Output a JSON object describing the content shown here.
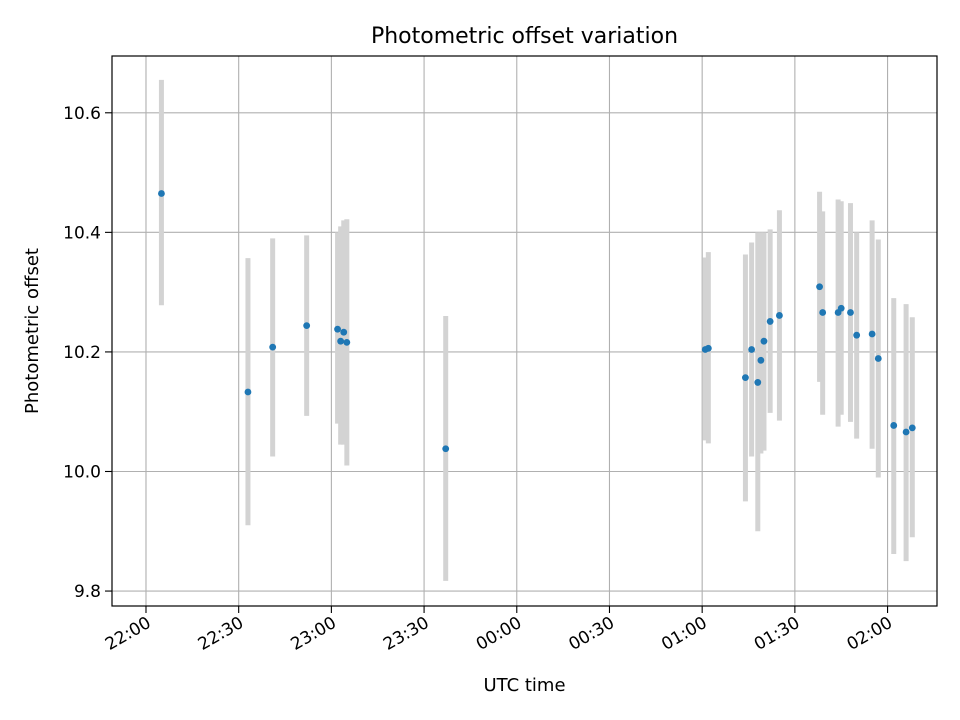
{
  "chart_data": {
    "type": "scatter",
    "title": "Photometric offset variation",
    "xlabel": "UTC time",
    "ylabel": "Photometric offset",
    "x_axis": "time",
    "x_range_minutes_since_2200": [
      -11,
      256
    ],
    "ylim": [
      9.775,
      10.695
    ],
    "grid": true,
    "xticks": [
      {
        "m": 0,
        "label": "22:00"
      },
      {
        "m": 30,
        "label": "22:30"
      },
      {
        "m": 60,
        "label": "23:00"
      },
      {
        "m": 90,
        "label": "23:30"
      },
      {
        "m": 120,
        "label": "00:00"
      },
      {
        "m": 150,
        "label": "00:30"
      },
      {
        "m": 180,
        "label": "01:00"
      },
      {
        "m": 210,
        "label": "01:30"
      },
      {
        "m": 240,
        "label": "02:00"
      }
    ],
    "yticks": [
      {
        "v": 9.8,
        "label": "9.8"
      },
      {
        "v": 10.0,
        "label": "10.0"
      },
      {
        "v": 10.2,
        "label": "10.2"
      },
      {
        "v": 10.4,
        "label": "10.4"
      },
      {
        "v": 10.6,
        "label": "10.6"
      }
    ],
    "colors": {
      "point": "#1f77b4",
      "errorbar": "#d3d3d3",
      "grid": "#b0b0b0"
    },
    "points": [
      {
        "t": "22:05",
        "y": 10.465,
        "lo": 10.278,
        "hi": 10.655
      },
      {
        "t": "22:33",
        "y": 10.133,
        "lo": 9.91,
        "hi": 10.357
      },
      {
        "t": "22:41",
        "y": 10.208,
        "lo": 10.025,
        "hi": 10.39
      },
      {
        "t": "22:52",
        "y": 10.244,
        "lo": 10.093,
        "hi": 10.395
      },
      {
        "t": "23:02",
        "y": 10.238,
        "lo": 10.08,
        "hi": 10.4
      },
      {
        "t": "23:03",
        "y": 10.218,
        "lo": 10.045,
        "hi": 10.41
      },
      {
        "t": "23:04",
        "y": 10.233,
        "lo": 10.045,
        "hi": 10.42
      },
      {
        "t": "23:05",
        "y": 10.216,
        "lo": 10.01,
        "hi": 10.422
      },
      {
        "t": "23:37",
        "y": 10.038,
        "lo": 9.817,
        "hi": 10.26
      },
      {
        "t": "01:01",
        "y": 10.204,
        "lo": 10.052,
        "hi": 10.358
      },
      {
        "t": "01:02",
        "y": 10.206,
        "lo": 10.047,
        "hi": 10.367
      },
      {
        "t": "01:14",
        "y": 10.157,
        "lo": 9.95,
        "hi": 10.363
      },
      {
        "t": "01:16",
        "y": 10.204,
        "lo": 10.025,
        "hi": 10.383
      },
      {
        "t": "01:18",
        "y": 10.149,
        "lo": 9.9,
        "hi": 10.4
      },
      {
        "t": "01:19",
        "y": 10.186,
        "lo": 10.03,
        "hi": 10.4
      },
      {
        "t": "01:20",
        "y": 10.218,
        "lo": 10.035,
        "hi": 10.4
      },
      {
        "t": "01:22",
        "y": 10.251,
        "lo": 10.098,
        "hi": 10.405
      },
      {
        "t": "01:25",
        "y": 10.261,
        "lo": 10.085,
        "hi": 10.437
      },
      {
        "t": "01:38",
        "y": 10.309,
        "lo": 10.15,
        "hi": 10.468
      },
      {
        "t": "01:39",
        "y": 10.266,
        "lo": 10.095,
        "hi": 10.435
      },
      {
        "t": "01:44",
        "y": 10.266,
        "lo": 10.075,
        "hi": 10.455
      },
      {
        "t": "01:45",
        "y": 10.273,
        "lo": 10.095,
        "hi": 10.452
      },
      {
        "t": "01:48",
        "y": 10.266,
        "lo": 10.083,
        "hi": 10.449
      },
      {
        "t": "01:50",
        "y": 10.228,
        "lo": 10.055,
        "hi": 10.4
      },
      {
        "t": "01:55",
        "y": 10.23,
        "lo": 10.038,
        "hi": 10.42
      },
      {
        "t": "01:57",
        "y": 10.189,
        "lo": 9.99,
        "hi": 10.388
      },
      {
        "t": "02:02",
        "y": 10.077,
        "lo": 9.862,
        "hi": 10.29
      },
      {
        "t": "02:06",
        "y": 10.066,
        "lo": 9.85,
        "hi": 10.28
      },
      {
        "t": "02:08",
        "y": 10.073,
        "lo": 9.89,
        "hi": 10.258
      }
    ]
  }
}
